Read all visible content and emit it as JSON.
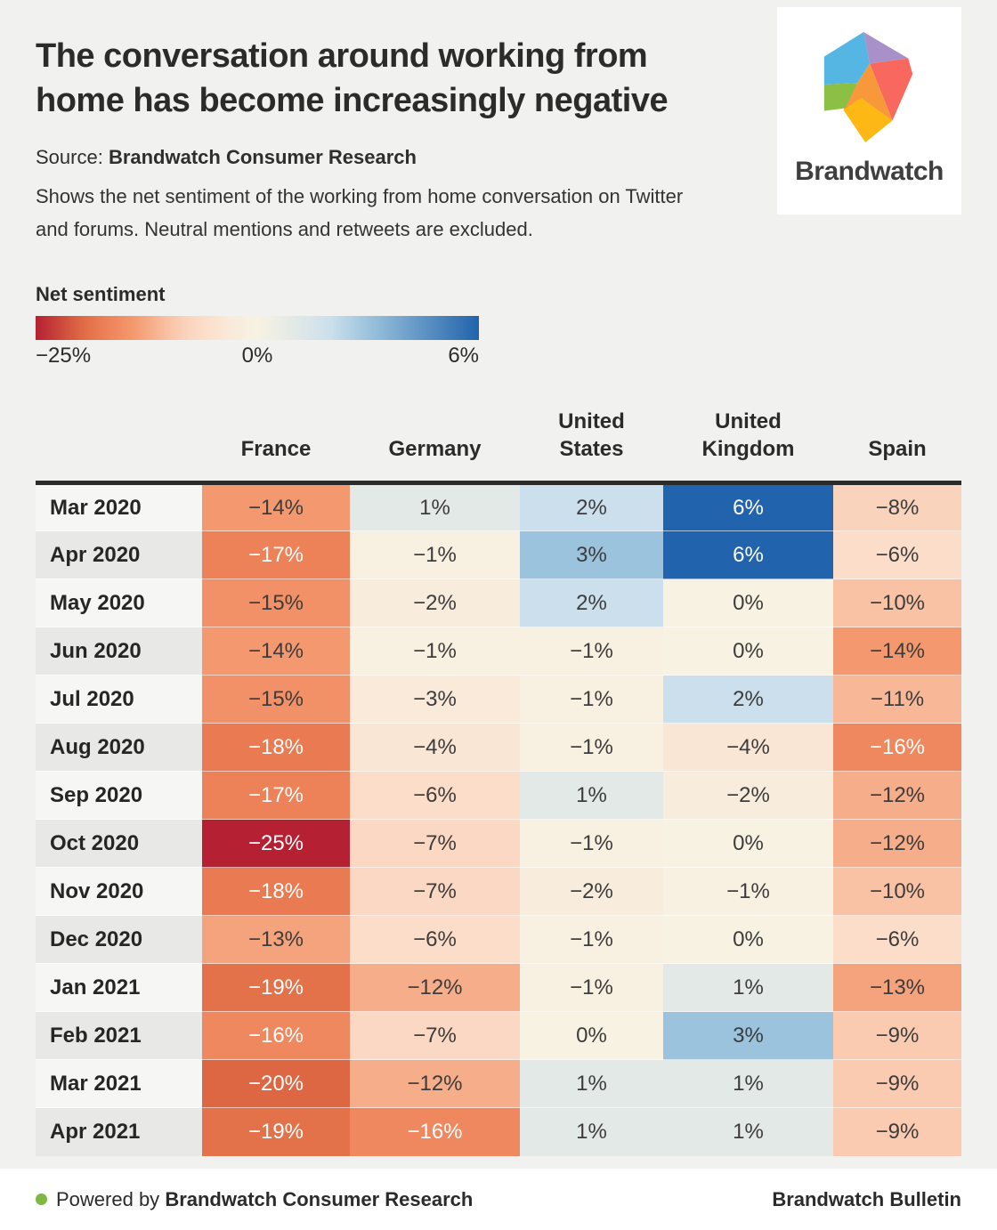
{
  "header": {
    "title_lines": [
      "The conversation around working from",
      "home has become increasingly negative"
    ],
    "source_prefix": "Source: ",
    "source_name": "Brandwatch Consumer Research",
    "description_lines": [
      "Shows the net sentiment of the working from home conversation on Twitter",
      "and forums. Neutral mentions and retweets are excluded."
    ],
    "logo": {
      "brand_name": "Brandwatch",
      "facet_colors": {
        "blue": "#55b5e3",
        "purple": "#a891c9",
        "red": "#f9685e",
        "orange": "#f7993b",
        "green": "#8cc044",
        "yellow": "#fdb815"
      }
    }
  },
  "legend": {
    "label": "Net sentiment",
    "min_label": "−25%",
    "mid_label": "0%",
    "max_label": "6%"
  },
  "chart_data": {
    "type": "heatmap",
    "title": "The conversation around working from home has become increasingly negative",
    "unit": "%",
    "value_range": [
      -25,
      6
    ],
    "categories": [
      "Mar 2020",
      "Apr 2020",
      "May 2020",
      "Jun 2020",
      "Jul 2020",
      "Aug 2020",
      "Sep 2020",
      "Oct 2020",
      "Nov 2020",
      "Dec 2020",
      "Jan 2021",
      "Feb 2021",
      "Mar 2021",
      "Apr 2021"
    ],
    "series": [
      {
        "name": "France",
        "values": [
          -14,
          -17,
          -15,
          -14,
          -15,
          -18,
          -17,
          -25,
          -18,
          -13,
          -19,
          -16,
          -20,
          -19
        ]
      },
      {
        "name": "Germany",
        "values": [
          1,
          -1,
          -2,
          -1,
          -3,
          -4,
          -6,
          -7,
          -7,
          -6,
          -12,
          -7,
          -12,
          -16
        ]
      },
      {
        "name": "United States",
        "values": [
          2,
          3,
          2,
          -1,
          -1,
          -1,
          1,
          -1,
          -2,
          -1,
          -1,
          0,
          1,
          1
        ]
      },
      {
        "name": "United Kingdom",
        "values": [
          6,
          6,
          0,
          0,
          2,
          -4,
          -2,
          0,
          -1,
          0,
          1,
          3,
          1,
          1
        ]
      },
      {
        "name": "Spain",
        "values": [
          -8,
          -6,
          -10,
          -14,
          -11,
          -16,
          -12,
          -12,
          -10,
          -6,
          -13,
          -9,
          -9,
          -9
        ]
      }
    ],
    "colormap": {
      "stops": [
        [
          -25,
          "#b52033"
        ],
        [
          -20,
          "#dd6743"
        ],
        [
          -18,
          "#e97a51"
        ],
        [
          -16,
          "#f0885f"
        ],
        [
          -14,
          "#f4996f"
        ],
        [
          -12,
          "#f6ad8a"
        ],
        [
          -10,
          "#f9c2a4"
        ],
        [
          -8,
          "#fad3bd"
        ],
        [
          -6,
          "#fcddc9"
        ],
        [
          -4,
          "#fae6d4"
        ],
        [
          -2,
          "#f8eddd"
        ],
        [
          0,
          "#f7f2e2"
        ],
        [
          1,
          "#e2e9e7"
        ],
        [
          2,
          "#cbdfec"
        ],
        [
          3,
          "#9cc3dd"
        ],
        [
          6,
          "#2163ac"
        ]
      ],
      "text_dark": "#3c3c3c",
      "text_light": "#ffffff",
      "white_text_when_below": -16,
      "white_text_when_above": 6
    }
  },
  "footer": {
    "powered_prefix": "Powered by ",
    "powered_name": "Brandwatch Consumer Research",
    "right_text": "Brandwatch Bulletin"
  }
}
